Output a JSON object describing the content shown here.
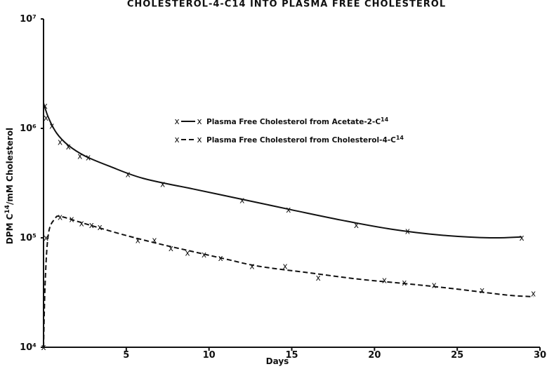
{
  "chart_data": {
    "type": "line",
    "title": "CHOLESTEROL-4-C14 INTO PLASMA FREE CHOLESTEROL",
    "xlabel": "Days",
    "ylabel": "DPM C14/mM Cholesterol",
    "xlim": [
      0,
      30
    ],
    "ylim": [
      10000,
      10000000
    ],
    "y_scale": "log",
    "x_ticks": [
      "5",
      "10",
      "15",
      "20",
      "25",
      "30"
    ],
    "y_ticks": [
      {
        "value": 10000,
        "label": "10⁴"
      },
      {
        "value": 100000,
        "label": "10⁵"
      },
      {
        "value": 1000000,
        "label": "10⁶"
      },
      {
        "value": 10000000,
        "label": "10⁷"
      }
    ],
    "legend_position": "upper-center",
    "series": [
      {
        "name": "Plasma Free Cholesterol from Acetate-2-C14",
        "line_style": "solid",
        "marker": "x",
        "points": [
          [
            0.1,
            1600000
          ],
          [
            0.15,
            1250000
          ],
          [
            0.5,
            1050000
          ],
          [
            1.0,
            750000
          ],
          [
            1.5,
            680000
          ],
          [
            2.2,
            560000
          ],
          [
            2.7,
            540000
          ],
          [
            5.1,
            380000
          ],
          [
            7.2,
            310000
          ],
          [
            12.0,
            220000
          ],
          [
            14.8,
            180000
          ],
          [
            18.9,
            130000
          ],
          [
            22.0,
            115000
          ],
          [
            28.9,
            100000
          ]
        ],
        "curve": [
          [
            0.0,
            1700000
          ],
          [
            0.3,
            1250000
          ],
          [
            0.8,
            900000
          ],
          [
            1.5,
            700000
          ],
          [
            2.5,
            560000
          ],
          [
            4.0,
            450000
          ],
          [
            6.0,
            350000
          ],
          [
            9.0,
            280000
          ],
          [
            12.0,
            225000
          ],
          [
            15.0,
            180000
          ],
          [
            18.0,
            145000
          ],
          [
            21.0,
            120000
          ],
          [
            24.0,
            106000
          ],
          [
            27.0,
            100000
          ],
          [
            28.9,
            102000
          ]
        ]
      },
      {
        "name": "Plasma Free Cholesterol from Cholesterol-4-C14",
        "line_style": "dashed",
        "marker": "x",
        "points": [
          [
            0.0,
            10000
          ],
          [
            0.15,
            100000
          ],
          [
            1.0,
            155000
          ],
          [
            1.7,
            148000
          ],
          [
            2.3,
            135000
          ],
          [
            2.9,
            130000
          ],
          [
            3.4,
            125000
          ],
          [
            5.7,
            95000
          ],
          [
            6.7,
            95000
          ],
          [
            7.7,
            80000
          ],
          [
            8.7,
            73000
          ],
          [
            9.7,
            70000
          ],
          [
            10.7,
            65000
          ],
          [
            12.6,
            55000
          ],
          [
            14.6,
            55000
          ],
          [
            16.6,
            43000
          ],
          [
            20.6,
            41000
          ],
          [
            21.8,
            39000
          ],
          [
            23.6,
            37000
          ],
          [
            26.5,
            33000
          ],
          [
            29.6,
            31000
          ]
        ],
        "curve": [
          [
            0.0,
            10000
          ],
          [
            0.1,
            40000
          ],
          [
            0.3,
            110000
          ],
          [
            0.7,
            150000
          ],
          [
            1.0,
            157000
          ],
          [
            2.0,
            142000
          ],
          [
            3.0,
            128000
          ],
          [
            5.0,
            105000
          ],
          [
            7.0,
            88000
          ],
          [
            9.0,
            75000
          ],
          [
            11.0,
            64000
          ],
          [
            13.0,
            55000
          ],
          [
            16.0,
            48000
          ],
          [
            19.0,
            42000
          ],
          [
            22.0,
            38000
          ],
          [
            25.0,
            34000
          ],
          [
            28.0,
            30000
          ],
          [
            29.6,
            29000
          ]
        ]
      }
    ]
  }
}
